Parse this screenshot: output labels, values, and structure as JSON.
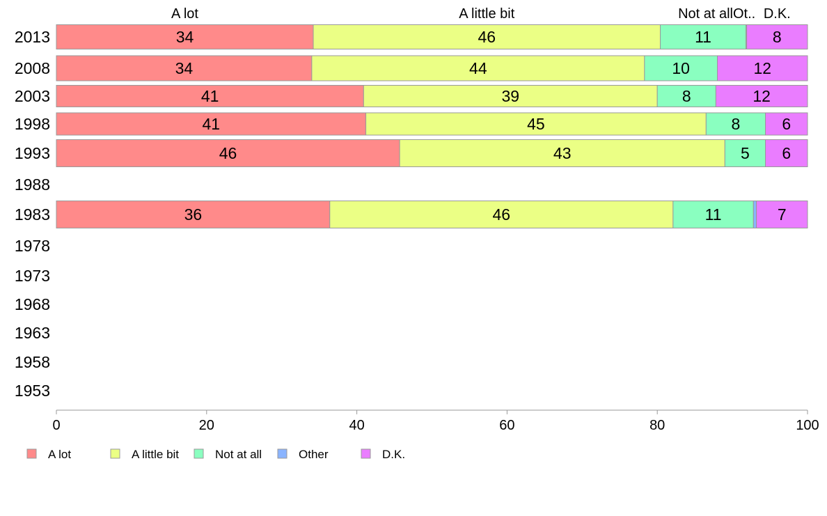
{
  "chart_data": {
    "type": "bar",
    "orientation": "horizontal",
    "stacked": true,
    "title": "",
    "xlabel": "",
    "ylabel": "",
    "xlim": [
      0,
      100
    ],
    "x_ticks": [
      0,
      20,
      40,
      60,
      80,
      100
    ],
    "categories": [
      "2013",
      "2008",
      "2003",
      "1998",
      "1993",
      "1988",
      "1983",
      "1978",
      "1973",
      "1968",
      "1963",
      "1958",
      "1953"
    ],
    "top_labels": [
      "A lot",
      "A little bit",
      "Not at all",
      "Ot..",
      "D.K."
    ],
    "legend_position": "bottom-left",
    "grid": false,
    "series": [
      {
        "name": "A lot",
        "color": "#ff8a8a",
        "values": [
          34.2,
          34.0,
          40.9,
          41.2,
          45.7,
          null,
          36.4,
          null,
          null,
          null,
          null,
          null,
          null
        ],
        "labels": [
          "34",
          "34",
          "41",
          "41",
          "46",
          "",
          "36",
          "",
          "",
          "",
          "",
          "",
          ""
        ]
      },
      {
        "name": "A little bit",
        "color": "#ebff85",
        "values": [
          46.2,
          44.3,
          39.1,
          45.3,
          43.3,
          null,
          45.7,
          null,
          null,
          null,
          null,
          null,
          null
        ],
        "labels": [
          "46",
          "44",
          "39",
          "45",
          "43",
          "",
          "46",
          "",
          "",
          "",
          "",
          "",
          ""
        ]
      },
      {
        "name": "Not at all",
        "color": "#8affc0",
        "values": [
          11.4,
          9.7,
          7.8,
          7.9,
          5.4,
          null,
          10.7,
          null,
          null,
          null,
          null,
          null,
          null
        ],
        "labels": [
          "11",
          "10",
          "8",
          "8",
          "5",
          "",
          "11",
          "",
          "",
          "",
          "",
          "",
          ""
        ]
      },
      {
        "name": "Other",
        "color": "#8ab4ff",
        "values": [
          0.1,
          0.0,
          0.0,
          0.0,
          0.0,
          null,
          0.4,
          null,
          null,
          null,
          null,
          null,
          null
        ],
        "labels": [
          "",
          "",
          "",
          "",
          "",
          "",
          "",
          "",
          "",
          "",
          "",
          "",
          ""
        ]
      },
      {
        "name": "D.K.",
        "color": "#ea7dff",
        "values": [
          8.1,
          12.0,
          12.2,
          5.6,
          5.6,
          null,
          6.8,
          null,
          null,
          null,
          null,
          null,
          null
        ],
        "labels": [
          "8",
          "12",
          "12",
          "6",
          "6",
          "",
          "7",
          "",
          "",
          "",
          "",
          "",
          ""
        ]
      }
    ]
  }
}
